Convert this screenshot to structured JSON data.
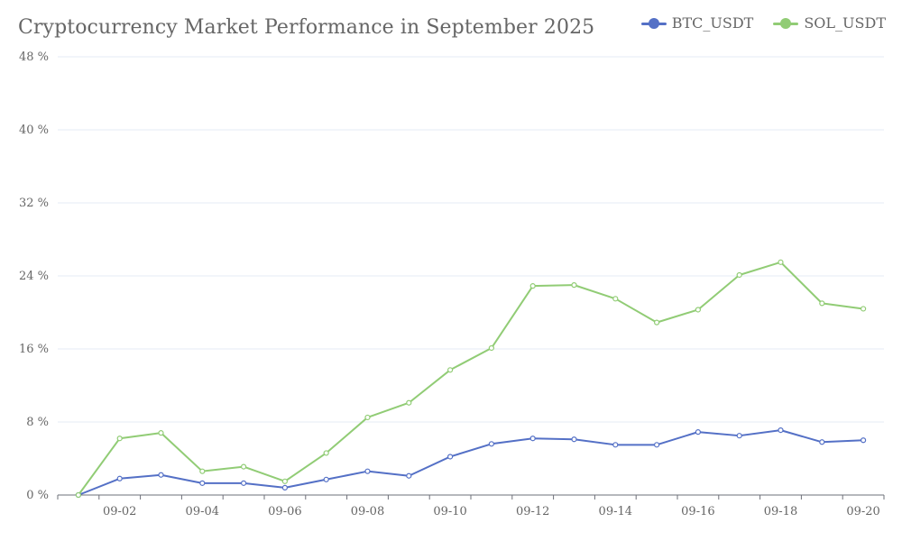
{
  "chart_data": {
    "type": "line",
    "title": "Cryptocurrency Market Performance in September 2025",
    "xlabel": "",
    "ylabel": "",
    "ylim": [
      0,
      48
    ],
    "y_ticks": [
      "0 %",
      "8 %",
      "16 %",
      "24 %",
      "32 %",
      "40 %",
      "48 %"
    ],
    "y_tick_values": [
      0,
      8,
      16,
      24,
      32,
      40,
      48
    ],
    "x_tick_labels": [
      "09-02",
      "09-04",
      "09-06",
      "09-08",
      "09-10",
      "09-12",
      "09-14",
      "09-16",
      "09-18",
      "09-20"
    ],
    "x": [
      "09-01",
      "09-02",
      "09-03",
      "09-04",
      "09-05",
      "09-06",
      "09-07",
      "09-08",
      "09-09",
      "09-10",
      "09-11",
      "09-12",
      "09-13",
      "09-14",
      "09-15",
      "09-16",
      "09-17",
      "09-18",
      "09-19",
      "09-20"
    ],
    "legend_position": "top-right",
    "grid": true,
    "series": [
      {
        "name": "BTC_USDT",
        "color": "#5470c6",
        "values": [
          0.0,
          1.8,
          2.2,
          1.3,
          1.3,
          0.8,
          1.7,
          2.6,
          2.1,
          4.2,
          5.6,
          6.2,
          6.1,
          5.5,
          5.5,
          6.9,
          6.5,
          7.1,
          5.8,
          6.0
        ]
      },
      {
        "name": "SOL_USDT",
        "color": "#91cc75",
        "values": [
          0.0,
          6.2,
          6.8,
          2.6,
          3.1,
          1.5,
          4.6,
          8.5,
          10.1,
          13.7,
          16.1,
          22.9,
          23.0,
          21.5,
          18.9,
          20.3,
          24.1,
          25.5,
          21.0,
          20.4
        ]
      }
    ]
  }
}
